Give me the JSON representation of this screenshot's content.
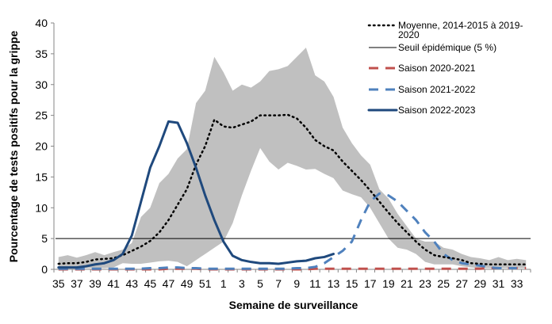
{
  "chart_data": {
    "type": "line",
    "xlabel": "Semaine de surveillance",
    "ylabel": "Pourcentage de tests positifs pour la grippe",
    "ylim": [
      0,
      40
    ],
    "yticks": [
      "0",
      "5",
      "10",
      "15",
      "20",
      "25",
      "30",
      "35",
      "40"
    ],
    "x": [
      35,
      36,
      37,
      38,
      39,
      40,
      41,
      42,
      43,
      44,
      45,
      46,
      47,
      48,
      49,
      50,
      51,
      52,
      1,
      2,
      3,
      4,
      5,
      6,
      7,
      8,
      9,
      10,
      11,
      12,
      13,
      14,
      15,
      16,
      17,
      18,
      19,
      20,
      21,
      22,
      23,
      24,
      25,
      26,
      27,
      28,
      29,
      30,
      31,
      32,
      33,
      34
    ],
    "xtick_labels": [
      "35",
      "37",
      "39",
      "41",
      "43",
      "45",
      "47",
      "49",
      "51",
      "1",
      "3",
      "5",
      "7",
      "9",
      "11",
      "13",
      "15",
      "17",
      "19",
      "21",
      "23",
      "25",
      "27",
      "29",
      "31",
      "33"
    ],
    "grid": false,
    "legend_position": "top-right",
    "band": {
      "color": "#c0c0c0",
      "max": [
        2.0,
        2.3,
        1.9,
        2.3,
        2.8,
        2.3,
        2.8,
        3.2,
        4.3,
        8.5,
        10,
        14,
        15.5,
        18,
        19.5,
        27,
        29,
        34.5,
        32,
        29,
        30,
        29.5,
        30.5,
        32.2,
        32.5,
        33,
        34.5,
        36,
        31.5,
        30.5,
        28,
        23,
        20.5,
        18.5,
        17,
        13,
        11.5,
        9,
        7,
        5,
        4.5,
        4.5,
        3.5,
        3.2,
        2.5,
        2.0,
        1.8,
        1.5,
        2.0,
        1.5,
        1.7,
        1.5
      ],
      "min": [
        0.2,
        0.2,
        0.2,
        0.2,
        0.2,
        0.2,
        0.3,
        1.0,
        0.9,
        0.9,
        1.1,
        1.3,
        1.4,
        1.2,
        0.5,
        1.5,
        2.5,
        3.5,
        4.5,
        7.5,
        12,
        16,
        19.7,
        17.5,
        16.2,
        17.3,
        16.8,
        16.2,
        16.3,
        15.5,
        14.8,
        12.8,
        12.2,
        11.7,
        10,
        7.5,
        5,
        3.5,
        3.2,
        2.5,
        1.2,
        0.8,
        0.8,
        0.8,
        0.5,
        0.3,
        0.2,
        0.2,
        0.2,
        0.2,
        0.2,
        0.2
      ]
    },
    "threshold": {
      "name": "Seuil épidémique (5 %)",
      "value": 5,
      "color": "#000000"
    },
    "series": [
      {
        "name": "Moyenne, 2014-2015 à 2019-2020",
        "style": "dotted",
        "color": "#000000",
        "values": [
          0.9,
          1.0,
          1.0,
          1.2,
          1.6,
          1.7,
          1.8,
          2.3,
          3.0,
          3.7,
          4.6,
          6.0,
          8.0,
          10.5,
          13,
          17,
          20,
          24.3,
          23.2,
          23,
          23.5,
          24,
          25,
          25,
          25,
          25.1,
          24.5,
          23,
          21,
          20,
          19.3,
          17.5,
          16,
          14.5,
          12.8,
          11,
          9.2,
          7.5,
          6,
          4.5,
          3.2,
          2.3,
          2.0,
          1.8,
          1.5,
          1.0,
          0.9,
          0.8,
          0.8,
          0.8,
          0.8,
          0.8
        ]
      },
      {
        "name": "Saison 2020-2021",
        "style": "dashed",
        "color": "#c0504d",
        "values": [
          0,
          0,
          0,
          0,
          0,
          0,
          0,
          0,
          0,
          0,
          0,
          0,
          0.1,
          0.1,
          0.1,
          0.1,
          0,
          0,
          0,
          0,
          0,
          0,
          0,
          0,
          0,
          0,
          0,
          0,
          0.1,
          0.1,
          0.1,
          0.1,
          0.1,
          0.1,
          0.1,
          0.1,
          0.1,
          0.1,
          0.1,
          0.1,
          0.1,
          0.1,
          0.1,
          0.1,
          0.1,
          0.1,
          0.1,
          0.2,
          0.2,
          0.2,
          0.2,
          0.2
        ]
      },
      {
        "name": "Saison 2021-2022",
        "style": "dashed",
        "color": "#4f81bd",
        "values": [
          0.1,
          0.1,
          0.1,
          0.1,
          0.1,
          0.1,
          0.1,
          0.1,
          0.1,
          0.1,
          0.2,
          0.2,
          0.3,
          0.3,
          0.2,
          0.2,
          0.1,
          0.1,
          0.1,
          0.1,
          0.1,
          0.1,
          0.1,
          0.1,
          0.1,
          0.1,
          0.2,
          0.2,
          0.4,
          1.0,
          2.0,
          3.0,
          4.5,
          8,
          11,
          12.3,
          12,
          11,
          9.5,
          8,
          6,
          4.5,
          2.5,
          1.5,
          1.0,
          0.8,
          0.6,
          0.3,
          0.2,
          0.2,
          0.2,
          null
        ]
      },
      {
        "name": "Saison 2022-2023",
        "style": "solid",
        "color": "#1f497d",
        "values": [
          0.3,
          0.3,
          0.3,
          0.5,
          0.8,
          1.0,
          1.5,
          2.5,
          5.5,
          11,
          16.5,
          20,
          24,
          23.8,
          20.5,
          16.5,
          12,
          8,
          4.5,
          2.2,
          1.5,
          1.2,
          1.0,
          1.0,
          0.9,
          1.1,
          1.3,
          1.4,
          1.8,
          2.0,
          2.5,
          null,
          null,
          null,
          null,
          null,
          null,
          null,
          null,
          null,
          null,
          null,
          null,
          null,
          null,
          null,
          null,
          null,
          null,
          null,
          null,
          null
        ]
      }
    ]
  }
}
